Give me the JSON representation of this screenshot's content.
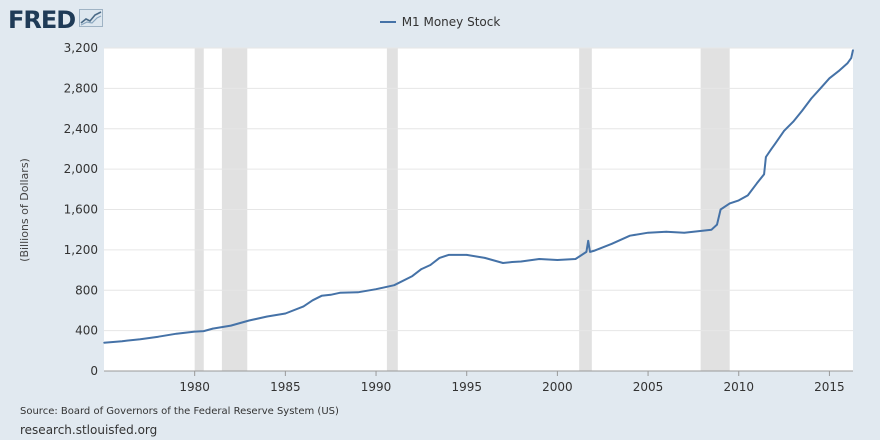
{
  "logo": {
    "text": "FRED",
    "icon": "chart-line-icon"
  },
  "legend": {
    "label": "M1 Money Stock",
    "color": "#4572a7"
  },
  "source": "Source: Board of Governors of the Federal Reserve System (US)",
  "url": "research.stlouisfed.org",
  "colors": {
    "line": "#4572a7",
    "recession": "#e1e1e1",
    "plot_bg": "#ffffff",
    "grid": "#e6e6e6",
    "page_bg": "#e1e9f0"
  },
  "chart_data": {
    "type": "line",
    "title": "",
    "xlabel": "",
    "ylabel": "(Billions of Dollars)",
    "xlim": [
      1975.0,
      2016.3
    ],
    "ylim": [
      0,
      3200
    ],
    "grid": true,
    "legend_position": "top-center",
    "x_ticks": [
      1980,
      1985,
      1990,
      1995,
      2000,
      2005,
      2010,
      2015
    ],
    "x_tick_labels": [
      "1980",
      "1985",
      "1990",
      "1995",
      "2000",
      "2005",
      "2010",
      "2015"
    ],
    "y_ticks": [
      0,
      400,
      800,
      1200,
      1600,
      2000,
      2400,
      2800,
      3200
    ],
    "y_tick_labels": [
      "0",
      "400",
      "800",
      "1,200",
      "1,600",
      "2,000",
      "2,400",
      "2,800",
      "3,200"
    ],
    "recessions": [
      [
        1980.0,
        1980.5
      ],
      [
        1981.5,
        1982.9
      ],
      [
        1990.6,
        1991.2
      ],
      [
        2001.2,
        2001.9
      ],
      [
        2007.9,
        2009.5
      ]
    ],
    "series": [
      {
        "name": "M1 Money Stock",
        "x": [
          1975.0,
          1976.0,
          1977.0,
          1978.0,
          1979.0,
          1980.0,
          1980.5,
          1981.0,
          1982.0,
          1983.0,
          1984.0,
          1985.0,
          1986.0,
          1986.5,
          1987.0,
          1987.5,
          1988.0,
          1989.0,
          1990.0,
          1991.0,
          1992.0,
          1992.5,
          1993.0,
          1993.5,
          1994.0,
          1995.0,
          1996.0,
          1997.0,
          1997.5,
          1998.0,
          1999.0,
          2000.0,
          2001.0,
          2001.6,
          2001.7,
          2001.8,
          2002.0,
          2003.0,
          2004.0,
          2005.0,
          2006.0,
          2007.0,
          2008.0,
          2008.5,
          2008.8,
          2009.0,
          2009.5,
          2010.0,
          2010.5,
          2011.0,
          2011.4,
          2011.5,
          2011.8,
          2012.0,
          2012.5,
          2013.0,
          2013.5,
          2014.0,
          2014.5,
          2015.0,
          2015.5,
          2016.0,
          2016.2,
          2016.3
        ],
        "values": [
          280,
          295,
          315,
          340,
          370,
          390,
          395,
          420,
          450,
          500,
          540,
          570,
          640,
          700,
          745,
          755,
          775,
          780,
          810,
          850,
          940,
          1010,
          1050,
          1120,
          1150,
          1150,
          1120,
          1070,
          1080,
          1085,
          1110,
          1100,
          1110,
          1180,
          1290,
          1180,
          1190,
          1260,
          1340,
          1370,
          1380,
          1370,
          1390,
          1400,
          1450,
          1600,
          1660,
          1690,
          1740,
          1860,
          1950,
          2120,
          2200,
          2250,
          2380,
          2470,
          2580,
          2700,
          2800,
          2900,
          2970,
          3050,
          3100,
          3180
        ]
      }
    ]
  }
}
